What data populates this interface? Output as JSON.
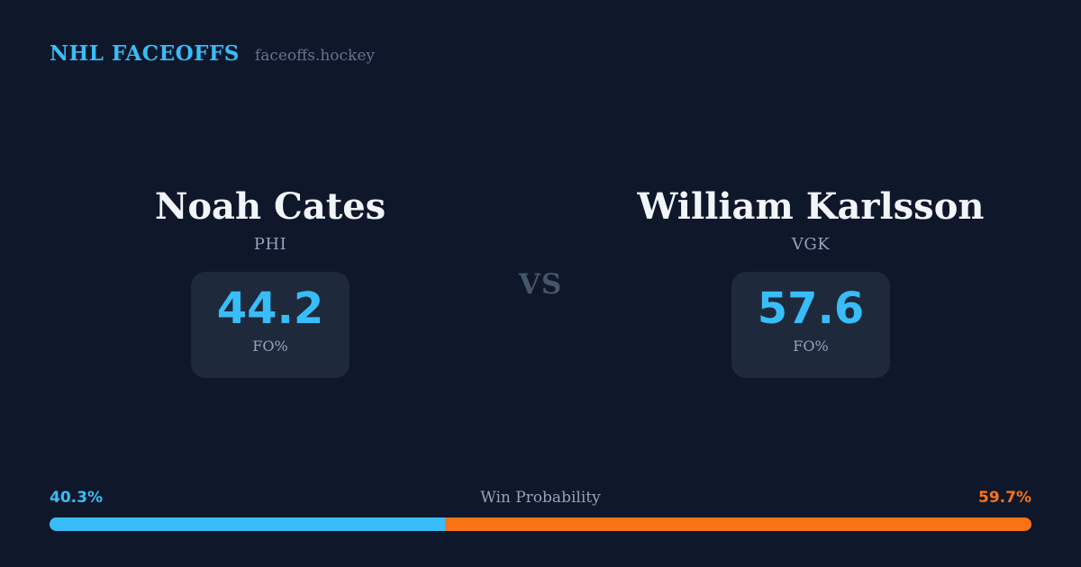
{
  "header": {
    "brand": "NHL FACEOFFS",
    "site": "faceoffs.hockey"
  },
  "matchup": {
    "vs_label": "VS",
    "left": {
      "name": "Noah Cates",
      "team": "PHI",
      "stat_value": "44.2",
      "stat_label": "FO%"
    },
    "right": {
      "name": "William Karlsson",
      "team": "VGK",
      "stat_value": "57.6",
      "stat_label": "FO%"
    }
  },
  "win_probability": {
    "title": "Win Probability",
    "left_label": "40.3%",
    "right_label": "59.7%",
    "left_pct": 40.3,
    "right_pct": 59.7
  },
  "colors": {
    "background": "#0f172a",
    "card": "#1e293b",
    "accent_blue": "#38bdf8",
    "accent_orange": "#f97316",
    "text_primary": "#f1f5f9",
    "text_muted": "#94a3b8",
    "text_faint": "#64748b",
    "vs_text": "#475569"
  },
  "chart_data": {
    "type": "bar",
    "title": "Win Probability",
    "layout": "horizontal-stacked",
    "categories": [
      "Noah Cates (PHI)",
      "William Karlsson (VGK)"
    ],
    "values": [
      40.3,
      59.7
    ],
    "unit": "%",
    "colors": [
      "#38bdf8",
      "#f97316"
    ],
    "xlim": [
      0,
      100
    ],
    "related_stats": {
      "label": "FO%",
      "values": [
        44.2,
        57.6
      ]
    }
  }
}
